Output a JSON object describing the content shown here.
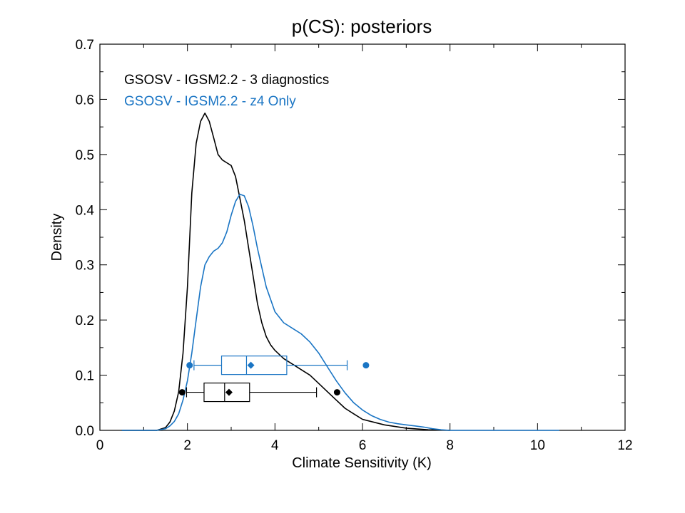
{
  "chart_data": {
    "type": "line",
    "title": "p(CS): posteriors",
    "xlabel": "Climate Sensitivity (K)",
    "ylabel": "Density",
    "xlim": [
      0,
      12
    ],
    "ylim": [
      0,
      0.7
    ],
    "xticks": [
      0,
      2,
      4,
      6,
      8,
      10,
      12
    ],
    "yticks": [
      0.0,
      0.1,
      0.2,
      0.3,
      0.4,
      0.5,
      0.6,
      0.7
    ],
    "xtick_labels": [
      "0",
      "2",
      "4",
      "6",
      "8",
      "10",
      "12"
    ],
    "ytick_labels": [
      "0.0",
      "0.1",
      "0.2",
      "0.3",
      "0.4",
      "0.5",
      "0.6",
      "0.7"
    ],
    "grid": false,
    "legend_position": "top-left",
    "series": [
      {
        "name": "GSOSV - IGSM2.2 - 3 diagnostics",
        "color": "#000000",
        "x": [
          0.5,
          1.3,
          1.5,
          1.6,
          1.7,
          1.8,
          1.9,
          2.0,
          2.1,
          2.2,
          2.3,
          2.4,
          2.5,
          2.6,
          2.7,
          2.8,
          2.9,
          3.0,
          3.1,
          3.2,
          3.3,
          3.4,
          3.5,
          3.6,
          3.7,
          3.8,
          3.9,
          4.0,
          4.2,
          4.4,
          4.6,
          4.8,
          5.0,
          5.2,
          5.4,
          5.6,
          5.8,
          6.0,
          6.5,
          7.0,
          7.5,
          8.0
        ],
        "y": [
          0.0,
          0.0,
          0.005,
          0.015,
          0.035,
          0.07,
          0.14,
          0.26,
          0.43,
          0.52,
          0.56,
          0.575,
          0.56,
          0.53,
          0.5,
          0.49,
          0.485,
          0.48,
          0.46,
          0.42,
          0.38,
          0.33,
          0.28,
          0.23,
          0.195,
          0.17,
          0.155,
          0.145,
          0.13,
          0.12,
          0.11,
          0.1,
          0.085,
          0.07,
          0.055,
          0.04,
          0.03,
          0.02,
          0.01,
          0.004,
          0.001,
          0.0
        ]
      },
      {
        "name": "GSOSV - IGSM2.2 - z4 Only",
        "color": "#1a75c4",
        "x": [
          0.5,
          1.3,
          1.5,
          1.6,
          1.7,
          1.8,
          1.9,
          2.0,
          2.1,
          2.2,
          2.3,
          2.4,
          2.5,
          2.6,
          2.7,
          2.8,
          2.9,
          3.0,
          3.1,
          3.2,
          3.3,
          3.4,
          3.5,
          3.6,
          3.8,
          4.0,
          4.2,
          4.4,
          4.6,
          4.8,
          5.0,
          5.2,
          5.4,
          5.6,
          5.8,
          6.0,
          6.2,
          6.4,
          6.6,
          6.8,
          7.0,
          7.2,
          7.4,
          7.6,
          7.8,
          8.0,
          9.0,
          10.5
        ],
        "y": [
          0.0,
          0.0,
          0.003,
          0.008,
          0.016,
          0.03,
          0.055,
          0.09,
          0.14,
          0.2,
          0.26,
          0.3,
          0.315,
          0.325,
          0.33,
          0.34,
          0.36,
          0.39,
          0.415,
          0.428,
          0.425,
          0.405,
          0.37,
          0.33,
          0.26,
          0.215,
          0.195,
          0.185,
          0.175,
          0.16,
          0.14,
          0.115,
          0.09,
          0.068,
          0.05,
          0.037,
          0.027,
          0.02,
          0.015,
          0.012,
          0.01,
          0.008,
          0.006,
          0.003,
          0.001,
          0.0,
          0.0,
          0.0
        ]
      }
    ],
    "boxplots": [
      {
        "series": "GSOSV - IGSM2.2 - z4 Only",
        "color": "#1a75c4",
        "y": 0.118,
        "whisker_low": 2.15,
        "q1": 2.78,
        "median": 3.35,
        "mean": 3.45,
        "q3": 4.27,
        "whisker_high": 5.65,
        "outlier_low": 2.05,
        "outlier_high": 6.08
      },
      {
        "series": "GSOSV - IGSM2.2 - 3 diagnostics",
        "color": "#000000",
        "y": 0.069,
        "whisker_low": 1.98,
        "q1": 2.38,
        "median": 2.85,
        "mean": 2.95,
        "q3": 3.42,
        "whisker_high": 4.95,
        "outlier_low": 1.88,
        "outlier_high": 5.42
      }
    ]
  }
}
